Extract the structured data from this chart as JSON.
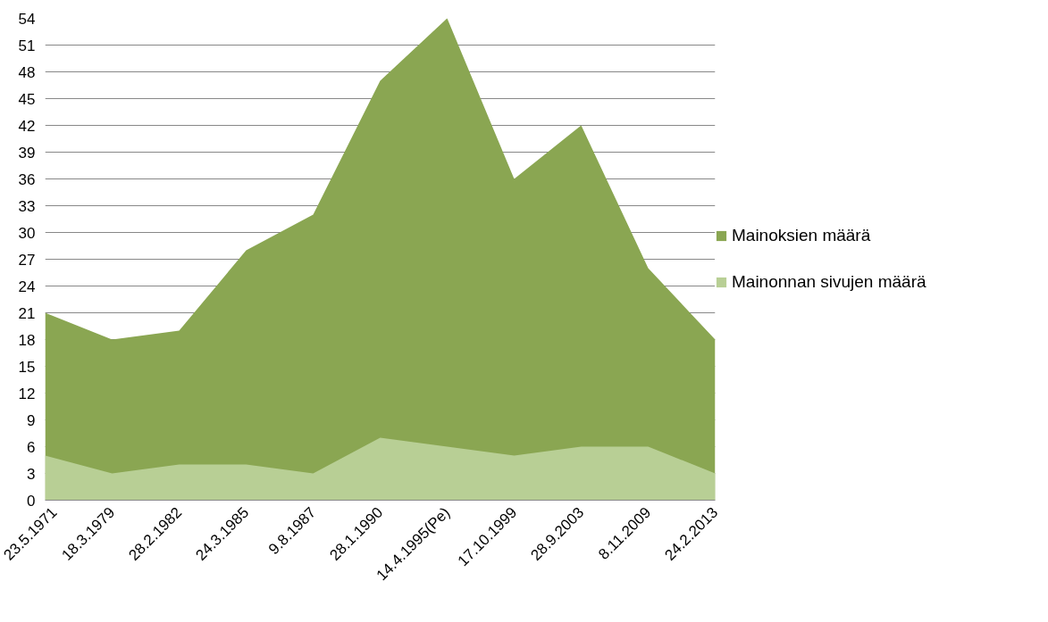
{
  "chart_data": {
    "type": "area",
    "categories": [
      "23.5.1971",
      "18.3.1979",
      "28.2.1982",
      "24.3.1985",
      "9.8.1987",
      "28.1.1990",
      "14.4.1995(Pe)",
      "17.10.1999",
      "28.9.2003",
      "8.11.2009",
      "24.2.2013"
    ],
    "series": [
      {
        "name": "Mainoksien määrä",
        "color": "#8aa652",
        "values": [
          21,
          18,
          19,
          28,
          32,
          47,
          54,
          36,
          42,
          26,
          18
        ]
      },
      {
        "name": "Mainonnan sivujen määrä",
        "color": "#b8cf95",
        "values": [
          5,
          3,
          4,
          4,
          3,
          7,
          6,
          5,
          6,
          6,
          3
        ]
      }
    ],
    "ylim": [
      0,
      54
    ],
    "yticks": [
      0,
      3,
      6,
      9,
      12,
      15,
      18,
      21,
      24,
      27,
      30,
      33,
      36,
      39,
      42,
      45,
      48,
      51,
      54
    ],
    "grid": "y",
    "legend": "right"
  }
}
